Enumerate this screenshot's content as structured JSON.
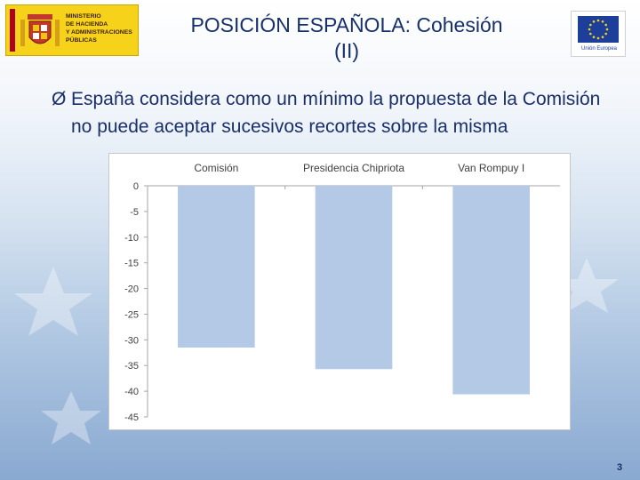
{
  "header": {
    "ministry_lines": [
      "MINISTERIO",
      "DE HACIENDA",
      "Y ADMINISTRACIONES",
      "PÚBLICAS"
    ],
    "title_line1": "POSICIÓN ESPAÑOLA: Cohesión",
    "title_line2": "(II)",
    "eu_caption": "Unión Europea"
  },
  "bullet": {
    "arrow": "Ø",
    "text": "España considera como un mínimo la propuesta de la Comisión no puede aceptar sucesivos recortes sobre la misma"
  },
  "chart_data": {
    "type": "bar",
    "categories": [
      "Comisión",
      "Presidencia Chipriota",
      "Van Rompuy I"
    ],
    "values": [
      -31.5,
      -35.7,
      -40.6
    ],
    "title": "",
    "xlabel": "",
    "ylabel": "",
    "ylim": [
      -45,
      0
    ],
    "yticks": [
      0,
      -5,
      -10,
      -15,
      -20,
      -25,
      -30,
      -35,
      -40,
      -45
    ],
    "category_axis_position": "top",
    "grid": false,
    "legend": "none",
    "bar_color": "#b3c9e6"
  },
  "footer": {
    "page_number": "3"
  }
}
